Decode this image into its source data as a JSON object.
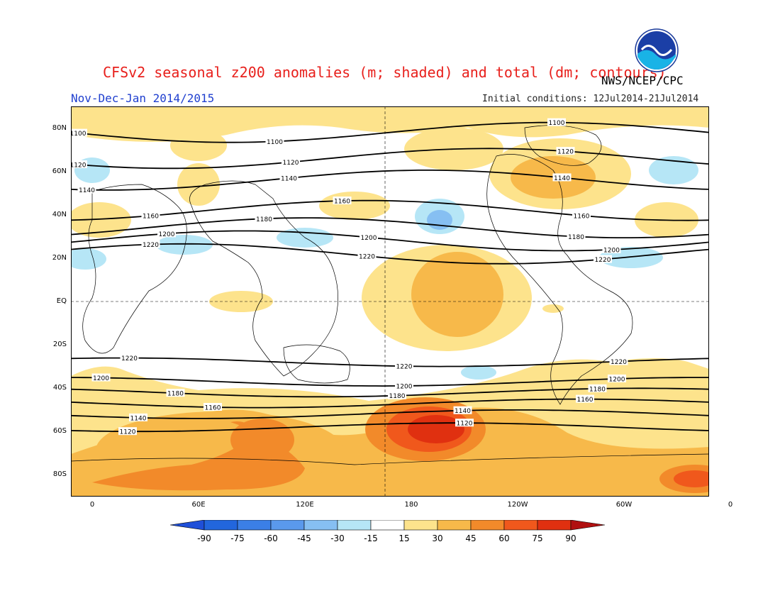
{
  "title": "CFSv2 seasonal z200 anomalies (m; shaded) and total (dm; contours)",
  "agency": "NWS/NCEP/CPC",
  "logo_text": "NOAA",
  "period": "Nov-Dec-Jan 2014/2015",
  "initial_conditions": "Initial conditions: 12Jul2014-21Jul2014",
  "lat_labels": [
    "80N",
    "60N",
    "40N",
    "20N",
    "EQ",
    "20S",
    "40S",
    "60S",
    "80S"
  ],
  "lon_labels": [
    "0",
    "60E",
    "120E",
    "180",
    "120W",
    "60W",
    "0"
  ],
  "colorbar": {
    "ticks": [
      "-90",
      "-75",
      "-60",
      "-45",
      "-30",
      "-15",
      "15",
      "30",
      "45",
      "60",
      "75",
      "90"
    ],
    "colors": [
      "#2266dd",
      "#3b7fe6",
      "#5a99ec",
      "#86bff2",
      "#b6e6f6",
      "#ffffff",
      "#fde38c",
      "#f7b94a",
      "#f28a2a",
      "#f0581c",
      "#e03010"
    ],
    "low_end": "#1f4fd8",
    "high_end": "#b01010"
  },
  "contours": [
    {
      "label": "1100",
      "lat": 78,
      "lon_labels": [
        -8,
        103,
        262
      ]
    },
    {
      "label": "1120",
      "lat": 66,
      "lon_labels": [
        -8,
        112,
        267
      ]
    },
    {
      "label": "1140",
      "lat": 56,
      "lon_labels": [
        -3,
        111,
        265
      ]
    },
    {
      "label": "1160",
      "lat": 42,
      "lon_labels": [
        33,
        141,
        276
      ]
    },
    {
      "label": "1180",
      "lat": 34,
      "lon_labels": [
        97,
        273
      ]
    },
    {
      "label": "1200",
      "lat": 28,
      "lon_labels": [
        42,
        156,
        293
      ]
    },
    {
      "label": "1220",
      "lat": 22,
      "lon_labels": [
        33,
        155,
        288
      ]
    },
    {
      "label": "1220",
      "lat": -28,
      "lon_labels": [
        21,
        176,
        297
      ]
    },
    {
      "label": "1200",
      "lat": -37,
      "lon_labels": [
        5,
        176,
        296
      ]
    },
    {
      "label": "1180",
      "lat": -42,
      "lon_labels": [
        47,
        172,
        285
      ]
    },
    {
      "label": "1160",
      "lat": -47,
      "lon_labels": [
        68,
        278
      ]
    },
    {
      "label": "1140",
      "lat": -52,
      "lon_labels": [
        26,
        209
      ]
    },
    {
      "label": "1120",
      "lat": -58,
      "lon_labels": [
        20,
        210
      ]
    }
  ]
}
